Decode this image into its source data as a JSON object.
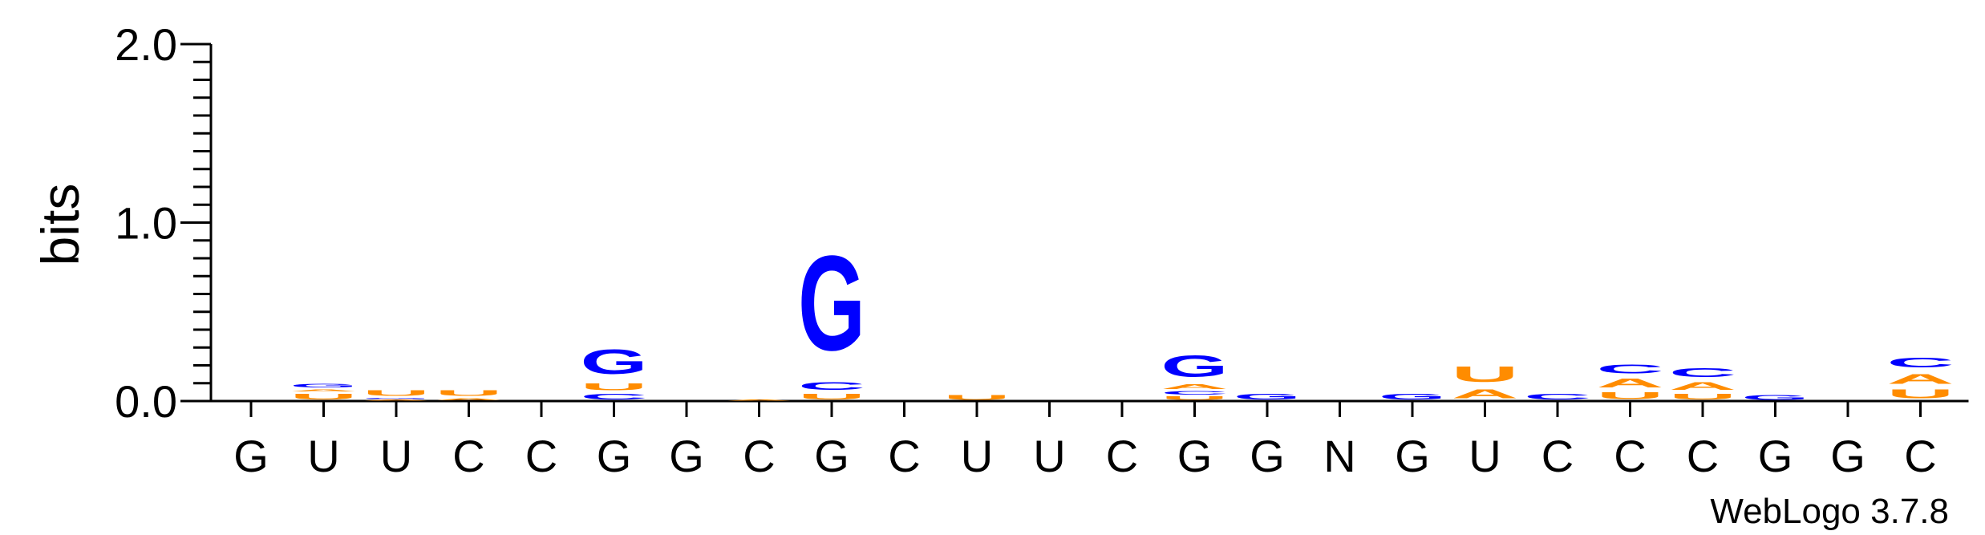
{
  "chart_data": {
    "type": "sequence-logo",
    "ylabel": "bits",
    "ylim": [
      0,
      2.0
    ],
    "yticks": [
      "0.0",
      "1.0",
      "2.0"
    ],
    "colors": {
      "G": "#0000ff",
      "C": "#0000ff",
      "A": "#ff8c00",
      "U": "#ff8c00"
    },
    "positions": [
      {
        "label": "G",
        "stack": []
      },
      {
        "label": "U",
        "stack": [
          {
            "letter": "U",
            "height": 0.05
          },
          {
            "letter": "A",
            "height": 0.02
          },
          {
            "letter": "G",
            "height": 0.03
          }
        ]
      },
      {
        "label": "U",
        "stack": [
          {
            "letter": "A",
            "height": 0.01
          },
          {
            "letter": "G",
            "height": 0.01
          },
          {
            "letter": "U",
            "height": 0.05
          }
        ]
      },
      {
        "label": "C",
        "stack": [
          {
            "letter": "A",
            "height": 0.02
          },
          {
            "letter": "U",
            "height": 0.05
          }
        ]
      },
      {
        "label": "C",
        "stack": []
      },
      {
        "label": "G",
        "stack": [
          {
            "letter": "C",
            "height": 0.05
          },
          {
            "letter": "U",
            "height": 0.06
          },
          {
            "letter": "G",
            "height": 0.22
          }
        ]
      },
      {
        "label": "G",
        "stack": []
      },
      {
        "label": "C",
        "stack": [
          {
            "letter": "A",
            "height": 0.01
          }
        ]
      },
      {
        "label": "G",
        "stack": [
          {
            "letter": "U",
            "height": 0.05
          },
          {
            "letter": "C",
            "height": 0.07
          },
          {
            "letter": "G",
            "height": 0.85
          }
        ]
      },
      {
        "label": "C",
        "stack": []
      },
      {
        "label": "U",
        "stack": [
          {
            "letter": "U",
            "height": 0.04
          }
        ]
      },
      {
        "label": "U",
        "stack": []
      },
      {
        "label": "C",
        "stack": []
      },
      {
        "label": "G",
        "stack": [
          {
            "letter": "U",
            "height": 0.03
          },
          {
            "letter": "C",
            "height": 0.03
          },
          {
            "letter": "A",
            "height": 0.04
          },
          {
            "letter": "G",
            "height": 0.19
          }
        ]
      },
      {
        "label": "G",
        "stack": [
          {
            "letter": "G",
            "height": 0.05
          }
        ]
      },
      {
        "label": "N",
        "stack": []
      },
      {
        "label": "G",
        "stack": [
          {
            "letter": "G",
            "height": 0.05
          }
        ]
      },
      {
        "label": "U",
        "stack": [
          {
            "letter": "A",
            "height": 0.08
          },
          {
            "letter": "U",
            "height": 0.14
          }
        ]
      },
      {
        "label": "C",
        "stack": [
          {
            "letter": "C",
            "height": 0.05
          }
        ]
      },
      {
        "label": "C",
        "stack": [
          {
            "letter": "U",
            "height": 0.06
          },
          {
            "letter": "A",
            "height": 0.08
          },
          {
            "letter": "C",
            "height": 0.08
          }
        ]
      },
      {
        "label": "C",
        "stack": [
          {
            "letter": "U",
            "height": 0.05
          },
          {
            "letter": "A",
            "height": 0.07
          },
          {
            "letter": "C",
            "height": 0.08
          }
        ]
      },
      {
        "label": "G",
        "stack": [
          {
            "letter": "G",
            "height": 0.04
          }
        ]
      },
      {
        "label": "G",
        "stack": []
      },
      {
        "label": "C",
        "stack": [
          {
            "letter": "U",
            "height": 0.08
          },
          {
            "letter": "A",
            "height": 0.09
          },
          {
            "letter": "C",
            "height": 0.09
          }
        ]
      }
    ]
  },
  "credit": "WebLogo 3.7.8"
}
